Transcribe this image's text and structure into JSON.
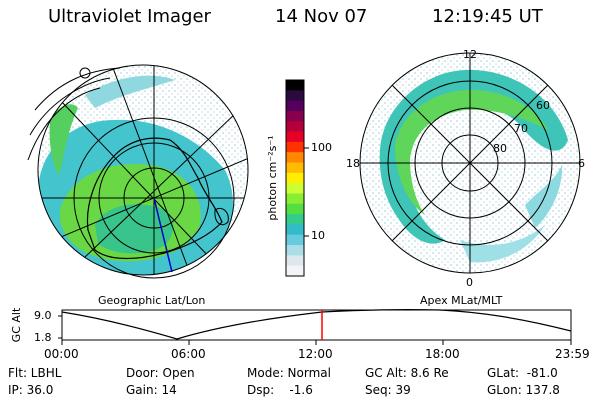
{
  "header": {
    "instrument": "Ultraviolet Imager",
    "date": "14 Nov 07",
    "time": "12:19:45 UT"
  },
  "colors": {
    "aurora_low": "#44ccdd",
    "aurora_mid": "#66dd33",
    "aurora_high": "#33cc77",
    "sparse": "#bbe8ee",
    "grid": "#000000",
    "time_marker": "#ff0000",
    "meridian": "#0000cc"
  },
  "left_panel": {
    "label": "Geographic Lat/Lon"
  },
  "right_panel": {
    "label": "Apex MLat/MLT",
    "mlt_labels": {
      "top": "12",
      "left": "18",
      "right": "6",
      "bottom": "0"
    },
    "lat_labels": [
      "60",
      "70",
      "80"
    ]
  },
  "colorbar": {
    "unit_label": "photon cm⁻²s⁻¹",
    "ticks": [
      "100",
      "10"
    ],
    "colors": [
      "#000000",
      "#2b0a3d",
      "#55005c",
      "#88004d",
      "#b3003a",
      "#e60026",
      "#ff3300",
      "#ff8800",
      "#ffbb00",
      "#ffee00",
      "#ccff33",
      "#88ee33",
      "#55dd44",
      "#33cc88",
      "#33bbcc",
      "#66ccdd",
      "#aadde6",
      "#dde8ee",
      "#f2f4f5"
    ]
  },
  "altitude_plot": {
    "ylabel": "GC Alt",
    "ytick_top": "9.0",
    "ytick_bottom": "1.8",
    "xticks": [
      "00:00",
      "06:00",
      "12:00",
      "18:00",
      "23:59"
    ],
    "marker_time": "12:19:45"
  },
  "info": {
    "flt": "Flt: LBHL",
    "ip": "IP: 36.0",
    "door": "Door: Open",
    "gain": "Gain: 14",
    "mode": "Mode: Normal",
    "dsp": "Dsp:    -1.6",
    "gc_alt": "GC Alt: 8.6 Re",
    "seq": "Seq: 39",
    "glat": "GLat:  -81.0",
    "glon": "GLon: 137.8"
  }
}
